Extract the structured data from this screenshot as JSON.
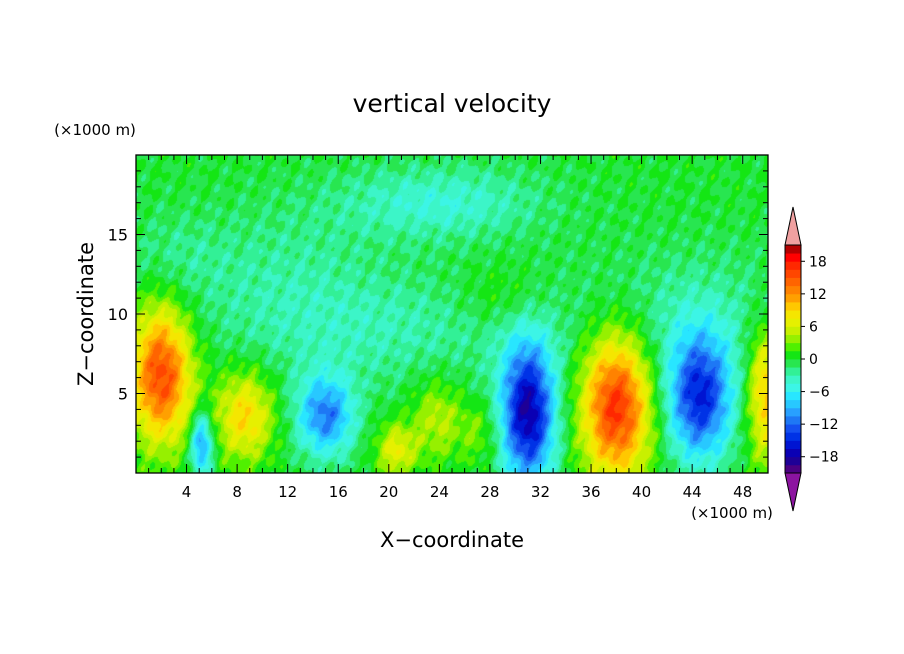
{
  "chart_data": {
    "type": "heatmap",
    "title": "vertical velocity",
    "xlabel": "X−coordinate",
    "ylabel": "Z−coordinate",
    "x_units": "(×1000 m)",
    "y_units": "(×1000 m)",
    "xlim": [
      0,
      50
    ],
    "ylim": [
      0,
      20
    ],
    "x_ticks": [
      4,
      8,
      12,
      16,
      20,
      24,
      28,
      32,
      36,
      40,
      44,
      48
    ],
    "y_ticks": [
      5,
      10,
      15
    ],
    "colorbar": {
      "levels": [
        -21,
        -19.5,
        -18,
        -16.5,
        -15,
        -13.5,
        -12,
        -10.5,
        -9,
        -7.5,
        -6,
        -4.5,
        -3,
        -1.5,
        0,
        1.5,
        3,
        4.5,
        6,
        7.5,
        9,
        10.5,
        12,
        13.5,
        15,
        16.5,
        18,
        19.5,
        21
      ],
      "colors": [
        "#4b0082",
        "#1e0096",
        "#0a00b4",
        "#0014d2",
        "#0032e6",
        "#1450f0",
        "#1e78f5",
        "#28a0ff",
        "#28c8ff",
        "#28e6ff",
        "#3cf5e6",
        "#3cf5c8",
        "#32f096",
        "#28e650",
        "#14e614",
        "#50f000",
        "#96f000",
        "#c8f000",
        "#e6f000",
        "#f5e600",
        "#ffc800",
        "#ffa000",
        "#ff8200",
        "#ff6400",
        "#ff4600",
        "#ff2800",
        "#ff0000",
        "#b40000"
      ],
      "labels": [
        18,
        12,
        6,
        0,
        -6,
        -12,
        -18
      ],
      "over_color": "#f0a0a0",
      "under_color": "#8c14a0"
    },
    "features": [
      {
        "x": 2.0,
        "z": 6.2,
        "amp": 16,
        "sx": 1.7,
        "sz": 3.0
      },
      {
        "x": 5.2,
        "z": 1.8,
        "amp": -11,
        "sx": 0.6,
        "sz": 1.4
      },
      {
        "x": 8.6,
        "z": 3.6,
        "amp": 9,
        "sx": 1.6,
        "sz": 2.0
      },
      {
        "x": 15.0,
        "z": 3.6,
        "amp": -11,
        "sx": 1.6,
        "sz": 1.8
      },
      {
        "x": 20.6,
        "z": 1.4,
        "amp": 7,
        "sx": 1.1,
        "sz": 1.2
      },
      {
        "x": 23.8,
        "z": 3.4,
        "amp": 5,
        "sx": 1.4,
        "sz": 1.8
      },
      {
        "x": 27.2,
        "z": 2.6,
        "amp": 3,
        "sx": 1.2,
        "sz": 1.4
      },
      {
        "x": 31.0,
        "z": 3.8,
        "amp": -18,
        "sx": 1.5,
        "sz": 3.1
      },
      {
        "x": 38.0,
        "z": 4.2,
        "amp": 17,
        "sx": 1.9,
        "sz": 3.2
      },
      {
        "x": 44.6,
        "z": 4.8,
        "amp": -15,
        "sx": 1.8,
        "sz": 2.8
      },
      {
        "x": 49.8,
        "z": 5.0,
        "amp": 10,
        "sx": 1.0,
        "sz": 3.0
      },
      {
        "x": 24.0,
        "z": 17.0,
        "amp": -4.5,
        "sx": 5.5,
        "sz": 1.6
      },
      {
        "x": 19.0,
        "z": 9.0,
        "amp": -3,
        "sx": 9.0,
        "sz": 2.5
      },
      {
        "x": 44.0,
        "z": 10.0,
        "amp": -2.5,
        "sx": 7.0,
        "sz": 3.0
      },
      {
        "x": 12.0,
        "z": 13.0,
        "amp": -2,
        "sx": 5.0,
        "sz": 3.0
      },
      {
        "x": 3.0,
        "z": 13.5,
        "amp": -2,
        "sx": 3.0,
        "sz": 2.0
      },
      {
        "x": 29.0,
        "z": 11.0,
        "amp": 2.2,
        "sx": 2.5,
        "sz": 1.5
      }
    ]
  }
}
